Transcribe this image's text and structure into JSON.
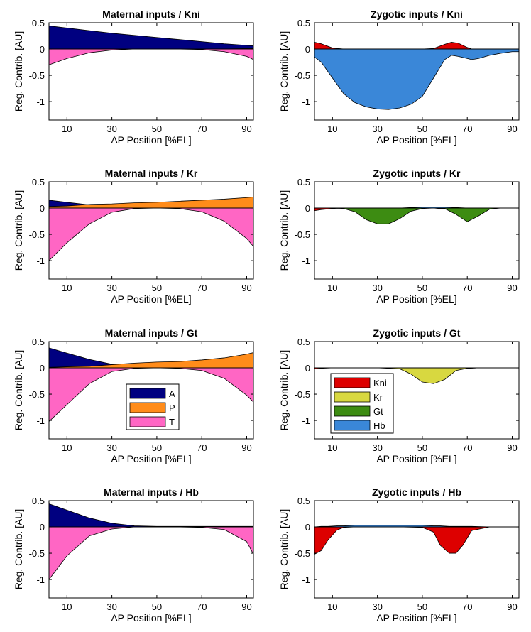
{
  "chart_data": [
    {
      "type": "area",
      "title": "Maternal inputs / Kni",
      "xlabel": "AP Position [%EL]",
      "ylabel": "Reg. Contrib. [AU]",
      "xlim": [
        2,
        93
      ],
      "ylim": [
        -1.35,
        0.5
      ],
      "xticks": [
        10,
        30,
        50,
        70,
        90
      ],
      "yticks": [
        0.5,
        0,
        -0.5,
        -1
      ],
      "ytick_labels": [
        "0.5",
        "0",
        "-0.5",
        "-1"
      ],
      "x": [
        2,
        10,
        20,
        30,
        40,
        50,
        60,
        70,
        80,
        90,
        93
      ],
      "series": [
        {
          "name": "A",
          "color": "#000080",
          "values": [
            0.44,
            0.4,
            0.35,
            0.3,
            0.26,
            0.22,
            0.18,
            0.14,
            0.1,
            0.07,
            0.06
          ]
        },
        {
          "name": "P",
          "color": "#ff8c1a",
          "values": [
            0,
            0,
            0,
            0,
            0,
            0,
            0,
            0,
            0,
            0.01,
            0.01
          ]
        },
        {
          "name": "T",
          "color": "#ff66c4",
          "values": [
            -0.3,
            -0.18,
            -0.07,
            -0.02,
            0,
            0,
            0,
            -0.01,
            -0.05,
            -0.14,
            -0.2
          ]
        }
      ]
    },
    {
      "type": "area",
      "title": "Zygotic inputs / Kni",
      "xlabel": "AP Position [%EL]",
      "ylabel": "Reg. Contrib. [AU]",
      "xlim": [
        2,
        93
      ],
      "ylim": [
        -1.35,
        0.5
      ],
      "xticks": [
        10,
        30,
        50,
        70,
        90
      ],
      "yticks": [
        0.5,
        0,
        -0.5,
        -1
      ],
      "ytick_labels": [
        "0.5",
        "0",
        "-0.5",
        "-1"
      ],
      "x": [
        2,
        5,
        10,
        15,
        20,
        25,
        30,
        35,
        40,
        45,
        50,
        55,
        60,
        63,
        66,
        70,
        72,
        75,
        80,
        85,
        90,
        93
      ],
      "series": [
        {
          "name": "Kni",
          "color": "#dd0000",
          "values": [
            0.13,
            0.1,
            0.02,
            0,
            0,
            0,
            0,
            0,
            0,
            0,
            0,
            0.01,
            0.09,
            0.13,
            0.11,
            0.03,
            0,
            0,
            0,
            0,
            0,
            0
          ]
        },
        {
          "name": "Kr",
          "color": "#d8d840",
          "values": [
            0,
            0,
            0,
            0,
            0,
            0,
            0,
            0,
            0,
            0,
            0,
            0,
            0,
            0,
            0,
            0,
            0,
            0,
            0,
            0,
            0,
            0
          ]
        },
        {
          "name": "Gt",
          "color": "#3d8c12",
          "values": [
            0,
            0,
            0,
            0,
            -0.05,
            -0.12,
            -0.15,
            -0.14,
            -0.08,
            -0.03,
            0,
            0,
            0,
            -0.02,
            -0.04,
            -0.06,
            -0.06,
            -0.05,
            -0.02,
            -0.01,
            0,
            0
          ]
        },
        {
          "name": "Hb",
          "color": "#3a87d8",
          "values": [
            -0.15,
            -0.25,
            -0.55,
            -0.85,
            -1.02,
            -1.1,
            -1.14,
            -1.15,
            -1.12,
            -1.05,
            -0.9,
            -0.55,
            -0.2,
            -0.12,
            -0.14,
            -0.18,
            -0.2,
            -0.18,
            -0.12,
            -0.08,
            -0.05,
            -0.05
          ]
        }
      ]
    },
    {
      "type": "area",
      "title": "Maternal inputs / Kr",
      "xlabel": "AP Position [%EL]",
      "ylabel": "Reg. Contrib. [AU]",
      "xlim": [
        2,
        93
      ],
      "ylim": [
        -1.35,
        0.5
      ],
      "xticks": [
        10,
        30,
        50,
        70,
        90
      ],
      "yticks": [
        0.5,
        0,
        -0.5,
        -1
      ],
      "ytick_labels": [
        "0.5",
        "0",
        "-0.5",
        "-1"
      ],
      "x": [
        2,
        10,
        20,
        30,
        40,
        50,
        60,
        70,
        80,
        90,
        93
      ],
      "series": [
        {
          "name": "A",
          "color": "#000080",
          "values": [
            0.15,
            0.11,
            0.06,
            0.03,
            0.01,
            0,
            0,
            0,
            0,
            0,
            0
          ]
        },
        {
          "name": "P",
          "color": "#ff8c1a",
          "values": [
            0.03,
            0.04,
            0.07,
            0.08,
            0.1,
            0.11,
            0.13,
            0.15,
            0.17,
            0.2,
            0.21
          ]
        },
        {
          "name": "T",
          "color": "#ff66c4",
          "values": [
            -1.0,
            -0.66,
            -0.3,
            -0.08,
            -0.01,
            0,
            -0.01,
            -0.07,
            -0.25,
            -0.58,
            -0.73
          ]
        }
      ]
    },
    {
      "type": "area",
      "title": "Zygotic inputs / Kr",
      "xlabel": "AP Position [%EL]",
      "ylabel": "Reg. Contrib. [AU]",
      "xlim": [
        2,
        93
      ],
      "ylim": [
        -1.35,
        0.5
      ],
      "xticks": [
        10,
        30,
        50,
        70,
        90
      ],
      "yticks": [
        0.5,
        0,
        -0.5,
        -1
      ],
      "ytick_labels": [
        "0.5",
        "0",
        "-0.5",
        "-1"
      ],
      "x": [
        2,
        5,
        10,
        15,
        20,
        25,
        30,
        35,
        40,
        45,
        50,
        55,
        60,
        65,
        70,
        75,
        80,
        85,
        90,
        93
      ],
      "series": [
        {
          "name": "Kni",
          "color": "#dd0000",
          "values": [
            -0.05,
            -0.03,
            -0.01,
            0,
            0,
            0,
            0,
            0,
            0,
            0,
            0,
            0,
            -0.02,
            -0.05,
            -0.02,
            0,
            0,
            0,
            0,
            0
          ]
        },
        {
          "name": "Kr",
          "color": "#d8d840",
          "values": [
            0,
            0,
            0,
            0,
            0,
            0,
            0,
            0,
            0,
            0,
            0,
            0,
            0,
            0,
            0,
            0,
            0,
            0,
            0,
            0
          ]
        },
        {
          "name": "Gt",
          "color": "#3d8c12",
          "values": [
            0,
            0,
            0,
            -0.01,
            -0.07,
            -0.22,
            -0.3,
            -0.3,
            -0.2,
            -0.06,
            -0.01,
            0,
            -0.01,
            -0.12,
            -0.26,
            -0.15,
            -0.02,
            0,
            0,
            0
          ]
        },
        {
          "name": "Hb",
          "color": "#3a87d8",
          "values": [
            0,
            0,
            0,
            0,
            0,
            0,
            0,
            0,
            0,
            0.01,
            0.02,
            0.02,
            0.02,
            0.01,
            0,
            0,
            0,
            0,
            0,
            0
          ]
        }
      ]
    },
    {
      "type": "area",
      "title": "Maternal inputs / Gt",
      "xlabel": "AP Position [%EL]",
      "ylabel": "Reg. Contrib. [AU]",
      "xlim": [
        2,
        93
      ],
      "ylim": [
        -1.35,
        0.5
      ],
      "xticks": [
        10,
        30,
        50,
        70,
        90
      ],
      "yticks": [
        0.5,
        0,
        -0.5,
        -1
      ],
      "ytick_labels": [
        "0.5",
        "0",
        "-0.5",
        "-1"
      ],
      "x": [
        2,
        10,
        20,
        30,
        40,
        50,
        60,
        70,
        80,
        90,
        93
      ],
      "series": [
        {
          "name": "A",
          "color": "#000080",
          "values": [
            0.38,
            0.28,
            0.16,
            0.07,
            0.02,
            0,
            0,
            0,
            0,
            0,
            0
          ]
        },
        {
          "name": "P",
          "color": "#ff8c1a",
          "values": [
            0.01,
            0.02,
            0.03,
            0.06,
            0.09,
            0.11,
            0.12,
            0.15,
            0.19,
            0.26,
            0.29
          ]
        },
        {
          "name": "T",
          "color": "#ff66c4",
          "values": [
            -1.02,
            -0.7,
            -0.3,
            -0.07,
            -0.01,
            0,
            -0.01,
            -0.05,
            -0.2,
            -0.52,
            -0.65
          ]
        }
      ]
    },
    {
      "type": "area",
      "title": "Zygotic inputs / Gt",
      "xlabel": "AP Position [%EL]",
      "ylabel": "Reg. Contrib. [AU]",
      "xlim": [
        2,
        93
      ],
      "ylim": [
        -1.35,
        0.5
      ],
      "xticks": [
        10,
        30,
        50,
        70,
        90
      ],
      "yticks": [
        0.5,
        0,
        -0.5,
        -1
      ],
      "ytick_labels": [
        "0.5",
        "0",
        "-0.5",
        "-1"
      ],
      "x": [
        2,
        5,
        10,
        20,
        30,
        40,
        45,
        50,
        55,
        60,
        65,
        70,
        75,
        80,
        90,
        93
      ],
      "series": [
        {
          "name": "Kni",
          "color": "#dd0000",
          "values": [
            -0.02,
            -0.01,
            0,
            0,
            0,
            0,
            0,
            0,
            0,
            0,
            -0.02,
            -0.01,
            0,
            0,
            0,
            0
          ]
        },
        {
          "name": "Kr",
          "color": "#d8d840",
          "values": [
            0,
            0,
            0,
            0,
            0,
            -0.02,
            -0.12,
            -0.27,
            -0.3,
            -0.22,
            -0.05,
            -0.01,
            0,
            0,
            0,
            0
          ]
        },
        {
          "name": "Gt",
          "color": "#3d8c12",
          "values": [
            0,
            0,
            0,
            0,
            0,
            0,
            0,
            0,
            0,
            0,
            0,
            0,
            0,
            0,
            0,
            0
          ]
        },
        {
          "name": "Hb",
          "color": "#3a87d8",
          "values": [
            0,
            0,
            0,
            0,
            0,
            0,
            0,
            0,
            0,
            0,
            0,
            0,
            0,
            0,
            0,
            0
          ]
        }
      ]
    },
    {
      "type": "area",
      "title": "Maternal inputs / Hb",
      "xlabel": "AP Position [%EL]",
      "ylabel": "Reg. Contrib. [AU]",
      "xlim": [
        2,
        93
      ],
      "ylim": [
        -1.35,
        0.5
      ],
      "xticks": [
        10,
        30,
        50,
        70,
        90
      ],
      "yticks": [
        0.5,
        0,
        -0.5,
        -1
      ],
      "ytick_labels": [
        "0.5",
        "0",
        "-0.5",
        "-1"
      ],
      "x": [
        2,
        10,
        20,
        30,
        40,
        50,
        60,
        70,
        80,
        90,
        93
      ],
      "series": [
        {
          "name": "A",
          "color": "#000080",
          "values": [
            0.44,
            0.32,
            0.17,
            0.07,
            0.02,
            0.01,
            0.01,
            0.01,
            0.01,
            0.01,
            0.01
          ]
        },
        {
          "name": "P",
          "color": "#ff8c1a",
          "values": [
            0,
            0,
            0,
            0,
            0,
            0,
            0,
            0,
            0,
            0,
            0
          ]
        },
        {
          "name": "T",
          "color": "#ff66c4",
          "values": [
            -1.0,
            -0.55,
            -0.17,
            -0.04,
            0,
            0,
            0,
            -0.01,
            -0.05,
            -0.28,
            -0.52
          ]
        }
      ]
    },
    {
      "type": "area",
      "title": "Zygotic inputs / Hb",
      "xlabel": "AP Position [%EL]",
      "ylabel": "Reg. Contrib. [AU]",
      "xlim": [
        2,
        93
      ],
      "ylim": [
        -1.35,
        0.5
      ],
      "xticks": [
        10,
        30,
        50,
        70,
        90
      ],
      "yticks": [
        0.5,
        0,
        -0.5,
        -1
      ],
      "ytick_labels": [
        "0.5",
        "0",
        "-0.5",
        "-1"
      ],
      "x": [
        2,
        5,
        8,
        12,
        15,
        20,
        30,
        40,
        50,
        55,
        58,
        62,
        65,
        68,
        72,
        80,
        90,
        93
      ],
      "series": [
        {
          "name": "Kni",
          "color": "#dd0000",
          "values": [
            -0.52,
            -0.45,
            -0.25,
            -0.06,
            -0.01,
            0,
            0,
            0,
            -0.01,
            -0.1,
            -0.35,
            -0.5,
            -0.5,
            -0.35,
            -0.07,
            0,
            0,
            0
          ]
        },
        {
          "name": "Kr",
          "color": "#d8d840",
          "values": [
            0,
            0,
            0,
            0,
            0,
            0,
            0,
            0,
            0,
            0,
            0,
            0,
            0,
            0,
            0,
            0,
            0,
            0
          ]
        },
        {
          "name": "Gt",
          "color": "#3d8c12",
          "values": [
            0,
            0,
            0,
            0,
            0,
            0,
            0,
            0,
            0,
            0,
            0,
            0,
            0,
            0,
            0,
            0,
            0,
            0
          ]
        },
        {
          "name": "Hb",
          "color": "#3a87d8",
          "values": [
            0,
            0.01,
            0.01,
            0.02,
            0.02,
            0.03,
            0.03,
            0.03,
            0.03,
            0.02,
            0.02,
            0.01,
            0.01,
            0.01,
            0.01,
            0,
            0,
            0
          ]
        }
      ]
    }
  ],
  "legends": {
    "maternal": {
      "location": "panel Maternal inputs / Gt, lower-center",
      "entries": [
        {
          "label": "A",
          "color": "#000080"
        },
        {
          "label": "P",
          "color": "#ff8c1a"
        },
        {
          "label": "T",
          "color": "#ff66c4"
        }
      ]
    },
    "zygotic": {
      "location": "panel Zygotic inputs / Gt, lower-left",
      "entries": [
        {
          "label": "Kni",
          "color": "#dd0000"
        },
        {
          "label": "Kr",
          "color": "#d8d840"
        },
        {
          "label": "Gt",
          "color": "#3d8c12"
        },
        {
          "label": "Hb",
          "color": "#3a87d8"
        }
      ]
    }
  }
}
